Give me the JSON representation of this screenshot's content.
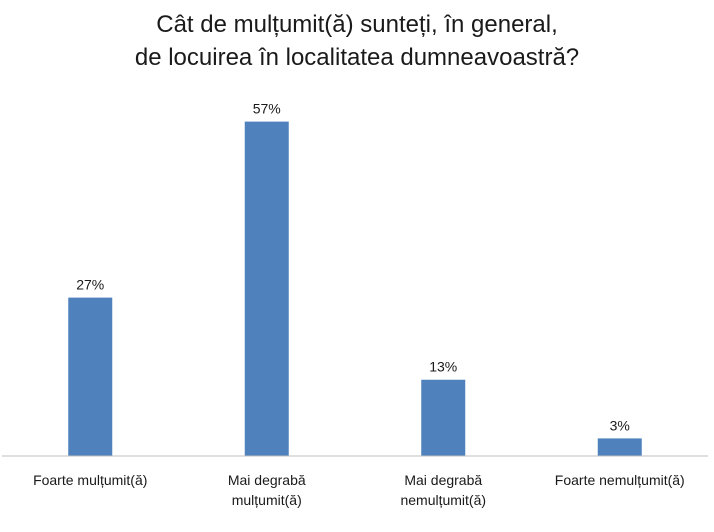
{
  "chart_data": {
    "type": "bar",
    "title_lines": [
      "Cât de mulțumit(ă) sunteți, în general,",
      "de locuirea în localitatea dumneavoastră?"
    ],
    "categories": [
      [
        "Foarte mulțumit(ă)"
      ],
      [
        "Mai degrabă",
        "mulțumit(ă)"
      ],
      [
        "Mai degrabă",
        "nemulțumit(ă)"
      ],
      [
        "Foarte nemulțumit(ă)"
      ]
    ],
    "values": [
      27,
      57,
      13,
      3
    ],
    "data_labels": [
      "27%",
      "57%",
      "13%",
      "3%"
    ],
    "ylim": [
      0,
      60
    ],
    "bar_color": "#4f81bd",
    "grid": false,
    "legend": "none"
  }
}
